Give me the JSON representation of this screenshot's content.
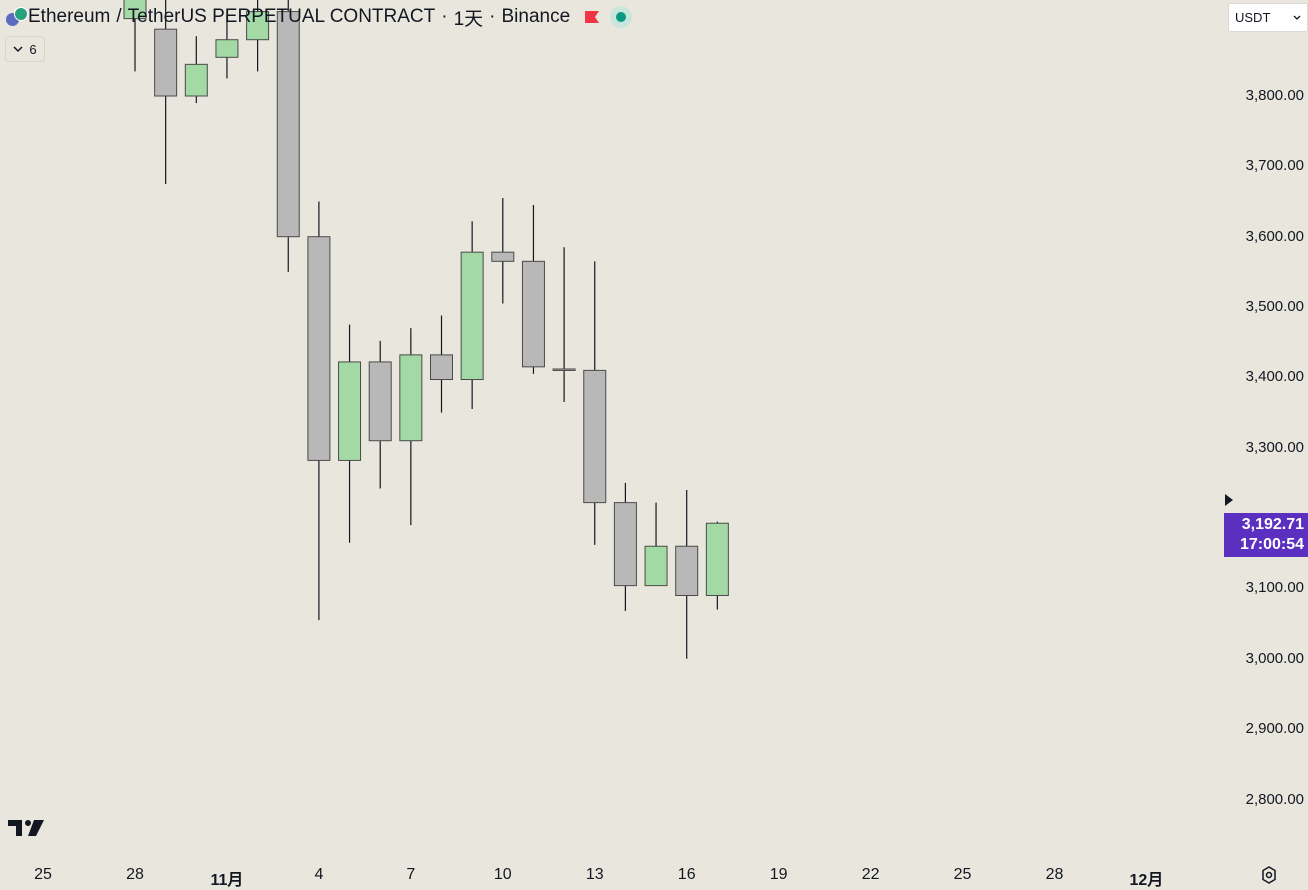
{
  "header": {
    "symbol": "Ethereum",
    "separator": "/",
    "quote": "TetherUS PERPETUAL CONTRACT",
    "interval_sep": "·",
    "interval": "1天",
    "exchange_sep": "·",
    "exchange": "Binance"
  },
  "indicators_toggle": {
    "count": "6"
  },
  "currency_select": {
    "value": "USDT"
  },
  "last_price": {
    "price": "3,192.71",
    "countdown": "17:00:54"
  },
  "colors": {
    "up": "#a3d9a5",
    "down": "#b8b8b8",
    "outline": "#4a4a4a",
    "label": "#5b2fbf",
    "background": "#e9e7dd"
  },
  "chart_data": {
    "type": "candlestick",
    "y_tick_labels": [
      "3,800.00",
      "3,700.00",
      "3,600.00",
      "3,500.00",
      "3,400.00",
      "3,300.00",
      "3,100.00",
      "3,000.00",
      "2,900.00",
      "2,800.00"
    ],
    "x_tick_labels": [
      "25",
      "28",
      "11月",
      "4",
      "7",
      "10",
      "13",
      "16",
      "19",
      "22",
      "25",
      "28",
      "12月"
    ],
    "candles": [
      {
        "date": "10-28",
        "open": 3910,
        "high": 4010,
        "low": 3835,
        "close": 3985
      },
      {
        "date": "10-29",
        "open": 3895,
        "high": 3940,
        "low": 3675,
        "close": 3800
      },
      {
        "date": "10-30",
        "open": 3800,
        "high": 3885,
        "low": 3790,
        "close": 3845
      },
      {
        "date": "10-31",
        "open": 3855,
        "high": 3915,
        "low": 3825,
        "close": 3880
      },
      {
        "date": "11-01",
        "open": 3880,
        "high": 3965,
        "low": 3835,
        "close": 3920
      },
      {
        "date": "11-02",
        "open": 3920,
        "high": 3980,
        "low": 3550,
        "close": 3600
      },
      {
        "date": "11-03",
        "open": 3600,
        "high": 3650,
        "low": 3055,
        "close": 3282
      },
      {
        "date": "11-04",
        "open": 3282,
        "high": 3475,
        "low": 3165,
        "close": 3422
      },
      {
        "date": "11-05",
        "open": 3422,
        "high": 3452,
        "low": 3242,
        "close": 3310
      },
      {
        "date": "11-06",
        "open": 3310,
        "high": 3470,
        "low": 3190,
        "close": 3432
      },
      {
        "date": "11-07",
        "open": 3432,
        "high": 3488,
        "low": 3350,
        "close": 3397
      },
      {
        "date": "11-08",
        "open": 3397,
        "high": 3622,
        "low": 3355,
        "close": 3578
      },
      {
        "date": "11-09",
        "open": 3578,
        "high": 3655,
        "low": 3505,
        "close": 3565
      },
      {
        "date": "11-10",
        "open": 3565,
        "high": 3645,
        "low": 3405,
        "close": 3415
      },
      {
        "date": "11-11",
        "open": 3412,
        "high": 3585,
        "low": 3365,
        "close": 3410
      },
      {
        "date": "11-12",
        "open": 3410,
        "high": 3565,
        "low": 3162,
        "close": 3222
      },
      {
        "date": "11-13",
        "open": 3222,
        "high": 3250,
        "low": 3068,
        "close": 3104
      },
      {
        "date": "11-14",
        "open": 3104,
        "high": 3222,
        "low": 3104,
        "close": 3160
      },
      {
        "date": "11-15",
        "open": 3160,
        "high": 3240,
        "low": 3000,
        "close": 3090
      },
      {
        "date": "11-16",
        "open": 3090,
        "high": 3195,
        "low": 3070,
        "close": 3192.71
      }
    ]
  }
}
